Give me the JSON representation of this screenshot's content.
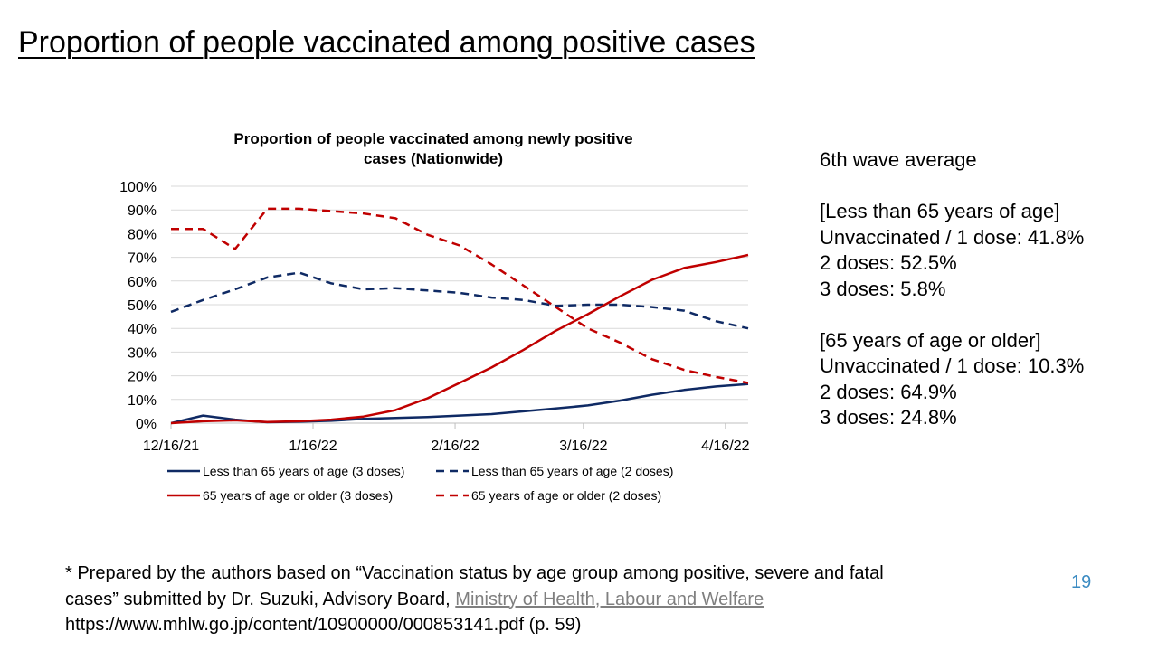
{
  "slide": {
    "title": "Proportion of people vaccinated among positive cases",
    "page_number": "19"
  },
  "side_notes": {
    "heading": "6th wave average",
    "under65": {
      "header": "[Less than 65 years of age]",
      "lines": [
        "Unvaccinated / 1 dose: 41.8%",
        "2 doses: 52.5%",
        "3 doses: 5.8%"
      ]
    },
    "over65": {
      "header": "[65 years of age or older]",
      "lines": [
        "Unvaccinated / 1 dose: 10.3%",
        "2 doses: 64.9%",
        "3 doses: 24.8%"
      ]
    }
  },
  "footnote": {
    "line1": "* Prepared by the authors based on “Vaccination status by age group among positive, severe and fatal",
    "line2_prefix": "cases” submitted by Dr. Suzuki, Advisory Board, ",
    "link_text": "Ministry of Health, Labour and Welfare",
    "line3": "https://www.mhlw.go.jp/content/10900000/000853141.pdf (p. 59)"
  },
  "chart_data": {
    "type": "line",
    "title_lines": [
      "Proportion of people vaccinated among newly positive",
      "cases (Nationwide)"
    ],
    "x": [
      "12/16/21",
      "12/23/21",
      "12/30/21",
      "1/6/22",
      "1/13/22",
      "1/20/22",
      "1/27/22",
      "2/3/22",
      "2/10/22",
      "2/17/22",
      "2/24/22",
      "3/3/22",
      "3/10/22",
      "3/17/22",
      "3/24/22",
      "3/31/22",
      "4/7/22",
      "4/14/22",
      "4/21/22"
    ],
    "x_tick_labels": [
      "12/16/21",
      "1/16/22",
      "2/16/22",
      "3/16/22",
      "4/16/22"
    ],
    "x_tick_index": [
      0,
      4.43,
      8.86,
      12.86,
      17.29
    ],
    "y_tick_labels": [
      "0%",
      "10%",
      "20%",
      "30%",
      "40%",
      "50%",
      "60%",
      "70%",
      "80%",
      "90%",
      "100%"
    ],
    "ylim": [
      0,
      100
    ],
    "grid": true,
    "legend_placement": "bottom",
    "series": [
      {
        "name": "Less than 65 years of age (3 doses)",
        "color": "#0f2a64",
        "dash": false,
        "values": [
          0,
          3.2,
          1.5,
          0.4,
          0.6,
          1.0,
          1.8,
          2.2,
          2.6,
          3.2,
          3.8,
          5.0,
          6.2,
          7.5,
          9.5,
          12.0,
          14.0,
          15.5,
          16.5
        ]
      },
      {
        "name": "Less than 65 years of age (2 doses)",
        "color": "#0f2a64",
        "dash": true,
        "values": [
          47,
          52,
          56.5,
          61.5,
          63.5,
          59,
          56.5,
          57,
          56,
          55,
          53,
          52,
          49.5,
          50,
          50,
          49,
          47.5,
          43,
          40
        ]
      },
      {
        "name": "65 years of age or older (3 doses)",
        "color": "#c00000",
        "dash": false,
        "values": [
          0,
          0.8,
          1.2,
          0.5,
          0.8,
          1.5,
          2.8,
          5.5,
          10.5,
          17,
          23.5,
          31,
          39,
          46,
          53.5,
          60.5,
          65.5,
          68,
          71
        ]
      },
      {
        "name": "65 years of age or older (2 doses)",
        "color": "#c00000",
        "dash": true,
        "values": [
          82,
          82,
          73.5,
          90.5,
          90.5,
          89.5,
          88.5,
          86.5,
          79.5,
          75,
          67,
          58,
          49,
          40,
          34,
          27,
          22.5,
          19.5,
          17
        ]
      }
    ]
  }
}
